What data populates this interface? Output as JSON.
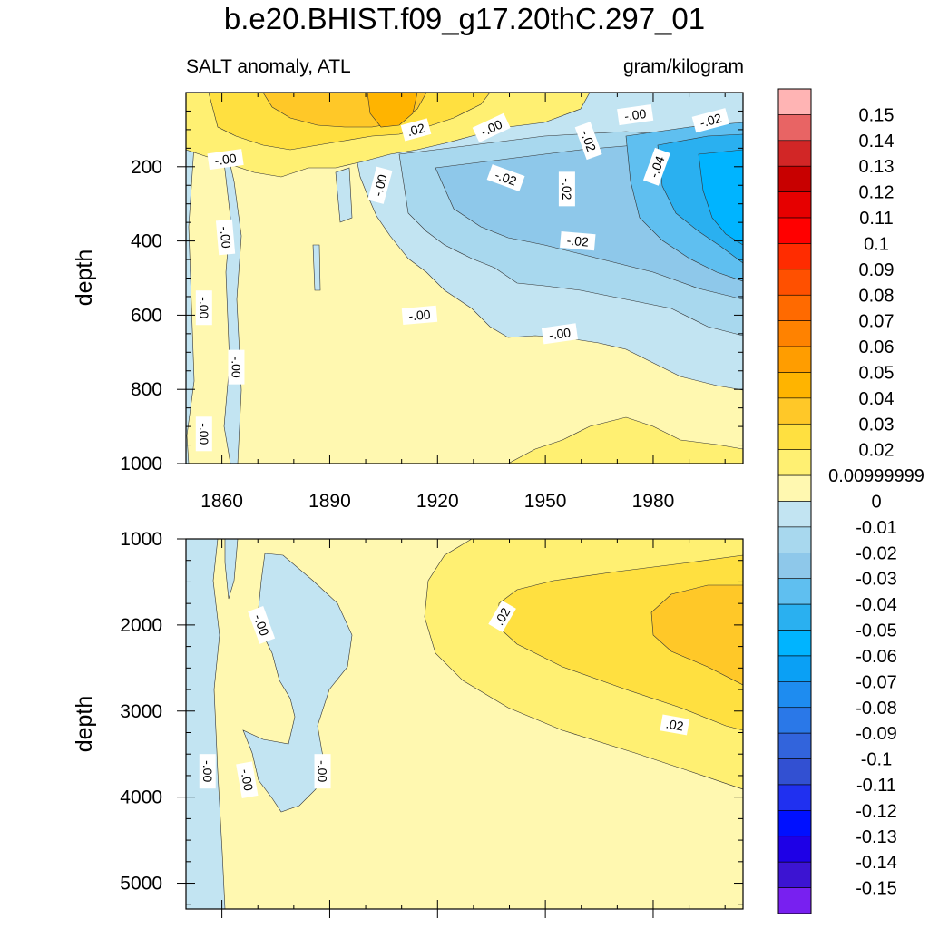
{
  "title": "b.e20.BHIST.f09_g17.20thC.297_01",
  "subtitle_left": "SALT anomaly, ATL",
  "subtitle_right": "gram/kilogram",
  "chart_data": [
    {
      "type": "heatmap",
      "panel": "upper",
      "title": "",
      "xlabel": "",
      "ylabel": "depth",
      "xlim": [
        1850,
        2005
      ],
      "ylim": [
        0,
        1000
      ],
      "y_inverted": true,
      "x_ticks": [
        1860,
        1890,
        1920,
        1950,
        1980
      ],
      "y_ticks": [
        200,
        400,
        600,
        800,
        1000
      ],
      "contour_labels": [
        {
          "text": "-.00",
          "x": 1861,
          "y": 180,
          "rot": -8
        },
        {
          "text": ".02",
          "x": 1914,
          "y": 100,
          "rot": -15
        },
        {
          "text": "-.00",
          "x": 1935,
          "y": 95,
          "rot": -25
        },
        {
          "text": "-.02",
          "x": 1962,
          "y": 130,
          "rot": 70
        },
        {
          "text": "-.00",
          "x": 1975,
          "y": 60,
          "rot": -8
        },
        {
          "text": "-.02",
          "x": 1996,
          "y": 75,
          "rot": -15
        },
        {
          "text": "-.00",
          "x": 1904,
          "y": 250,
          "rot": -75
        },
        {
          "text": "-.02",
          "x": 1939,
          "y": 230,
          "rot": 20
        },
        {
          "text": "-.02",
          "x": 1956,
          "y": 260,
          "rot": 90
        },
        {
          "text": "-.04",
          "x": 1981,
          "y": 200,
          "rot": -70
        },
        {
          "text": "-.02",
          "x": 1959,
          "y": 400,
          "rot": 5
        },
        {
          "text": "-.00",
          "x": 1861,
          "y": 390,
          "rot": 85
        },
        {
          "text": "-.00",
          "x": 1855,
          "y": 580,
          "rot": 90
        },
        {
          "text": "-.00",
          "x": 1915,
          "y": 600,
          "rot": -5
        },
        {
          "text": "-.00",
          "x": 1954,
          "y": 650,
          "rot": -8
        },
        {
          "text": "-.00",
          "x": 1864,
          "y": 740,
          "rot": 90
        },
        {
          "text": "-.00",
          "x": 1855,
          "y": 920,
          "rot": 90
        }
      ]
    },
    {
      "type": "heatmap",
      "panel": "lower",
      "title": "",
      "xlabel": "",
      "ylabel": "depth",
      "xlim": [
        1850,
        2005
      ],
      "ylim": [
        1000,
        5300
      ],
      "y_inverted": true,
      "y_ticks": [
        1000,
        2000,
        3000,
        4000,
        5000
      ],
      "contour_labels": [
        {
          "text": ".02",
          "x": 1938,
          "y": 1900,
          "rot": -60
        },
        {
          "text": ".02",
          "x": 1986,
          "y": 3160,
          "rot": 10
        },
        {
          "text": "-.00",
          "x": 1871,
          "y": 2000,
          "rot": 70
        },
        {
          "text": "-.00",
          "x": 1856,
          "y": 3700,
          "rot": 90
        },
        {
          "text": "-.00",
          "x": 1867,
          "y": 3800,
          "rot": 80
        },
        {
          "text": "-.00",
          "x": 1888,
          "y": 3700,
          "rot": 90
        }
      ]
    }
  ],
  "colorbar": {
    "labels": [
      "0.15",
      "0.14",
      "0.13",
      "0.12",
      "0.11",
      "0.1",
      "0.09",
      "0.08",
      "0.07",
      "0.06",
      "0.05",
      "0.04",
      "0.03",
      "0.02",
      "0.00999999",
      "0",
      "-0.01",
      "-0.02",
      "-0.03",
      "-0.04",
      "-0.05",
      "-0.06",
      "-0.07",
      "-0.08",
      "-0.09",
      "-0.1",
      "-0.11",
      "-0.12",
      "-0.13",
      "-0.14",
      "-0.15"
    ],
    "colors": [
      "#ffb4b4",
      "#e86464",
      "#d22626",
      "#c80000",
      "#e60000",
      "#ff0000",
      "#ff2c00",
      "#ff5000",
      "#ff6a00",
      "#ff8200",
      "#ff9d00",
      "#ffb400",
      "#ffc828",
      "#ffe040",
      "#fff072",
      "#fff8b0",
      "#c2e4f2",
      "#a8d8ee",
      "#8ec8ea",
      "#5fbff0",
      "#2ab0f0",
      "#00b4ff",
      "#0aa0f5",
      "#1e8cf0",
      "#2a78e8",
      "#3264dc",
      "#3250d2",
      "#2030f0",
      "#0010ff",
      "#1e00e6",
      "#3c14d2",
      "#7820f0"
    ]
  }
}
